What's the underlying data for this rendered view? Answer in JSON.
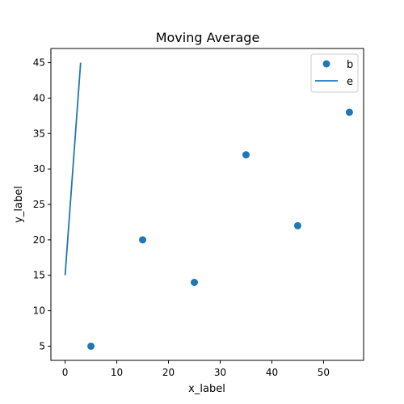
{
  "chart_data": {
    "type": "scatter",
    "title": "Moving Average",
    "xlabel": "x_label",
    "ylabel": "y_label",
    "xlim": [
      -2.75,
      57.75
    ],
    "ylim": [
      3,
      47
    ],
    "x_ticks": [
      0,
      10,
      20,
      30,
      40,
      50
    ],
    "y_ticks": [
      5,
      10,
      15,
      20,
      25,
      30,
      35,
      40,
      45
    ],
    "grid": false,
    "legend_position": "top-right",
    "series": [
      {
        "name": "b",
        "kind": "scatter",
        "color": "#1f77b4",
        "x": [
          5,
          15,
          25,
          35,
          45,
          55
        ],
        "y": [
          5,
          20,
          14,
          32,
          22,
          38
        ]
      },
      {
        "name": "e",
        "kind": "line",
        "color": "#1f77b4",
        "x": [
          0,
          3
        ],
        "y": [
          15,
          45
        ]
      }
    ]
  }
}
